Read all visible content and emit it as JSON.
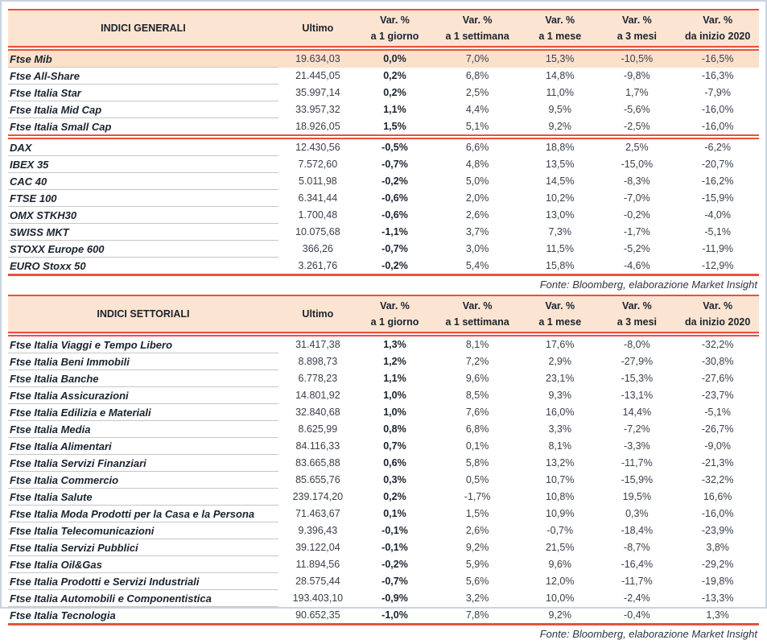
{
  "colors": {
    "accent": "#e8513c",
    "header_bg": "#fce4d2",
    "highlight_bg": "#fbe0ca",
    "text_dark": "#1a232e"
  },
  "tables": [
    {
      "title": "INDICI GENERALI",
      "ultimo_label": "Ultimo",
      "var_headers": [
        {
          "line1": "Var. %",
          "line2": "a 1 giorno"
        },
        {
          "line1": "Var. %",
          "line2": "a 1 settimana"
        },
        {
          "line1": "Var. %",
          "line2": "a 1 mese"
        },
        {
          "line1": "Var. %",
          "line2": "a 3 mesi"
        },
        {
          "line1": "Var. %",
          "line2": "da inizio 2020"
        }
      ],
      "rows": [
        {
          "name": "Ftse Mib",
          "ultimo": "19.634,03",
          "vars": [
            "0,0%",
            "7,0%",
            "15,3%",
            "-10,5%",
            "-16,5%"
          ],
          "highlight": true
        },
        {
          "name": "Ftse All-Share",
          "ultimo": "21.445,05",
          "vars": [
            "0,2%",
            "6,8%",
            "14,8%",
            "-9,8%",
            "-16,3%"
          ]
        },
        {
          "name": "Ftse Italia Star",
          "ultimo": "35.997,14",
          "vars": [
            "0,2%",
            "2,5%",
            "11,0%",
            "1,7%",
            "-7,9%"
          ]
        },
        {
          "name": "Ftse Italia Mid Cap",
          "ultimo": "33.957,32",
          "vars": [
            "1,1%",
            "4,4%",
            "9,5%",
            "-5,6%",
            "-16,0%"
          ]
        },
        {
          "name": "Ftse Italia Small Cap",
          "ultimo": "18.926,05",
          "vars": [
            "1,5%",
            "5,1%",
            "9,2%",
            "-2,5%",
            "-16,0%"
          ],
          "section_end": true
        },
        {
          "name": "DAX",
          "ultimo": "12.430,56",
          "vars": [
            "-0,5%",
            "6,6%",
            "18,8%",
            "2,5%",
            "-6,2%"
          ]
        },
        {
          "name": "IBEX 35",
          "ultimo": "7.572,60",
          "vars": [
            "-0,7%",
            "4,8%",
            "13,5%",
            "-15,0%",
            "-20,7%"
          ]
        },
        {
          "name": "CAC 40",
          "ultimo": "5.011,98",
          "vars": [
            "-0,2%",
            "5,0%",
            "14,5%",
            "-8,3%",
            "-16,2%"
          ]
        },
        {
          "name": "FTSE 100",
          "ultimo": "6.341,44",
          "vars": [
            "-0,6%",
            "2,0%",
            "10,2%",
            "-7,0%",
            "-15,9%"
          ]
        },
        {
          "name": "OMX STKH30",
          "ultimo": "1.700,48",
          "vars": [
            "-0,6%",
            "2,6%",
            "13,0%",
            "-0,2%",
            "-4,0%"
          ]
        },
        {
          "name": "SWISS MKT",
          "ultimo": "10.075,68",
          "vars": [
            "-1,1%",
            "3,7%",
            "7,3%",
            "-1,7%",
            "-5,1%"
          ]
        },
        {
          "name": "STOXX Europe 600",
          "ultimo": "366,26",
          "vars": [
            "-0,7%",
            "3,0%",
            "11,5%",
            "-5,2%",
            "-11,9%"
          ]
        },
        {
          "name": "EURO Stoxx 50",
          "ultimo": "3.261,76",
          "vars": [
            "-0,2%",
            "5,4%",
            "15,8%",
            "-4,6%",
            "-12,9%"
          ],
          "table_end": true
        }
      ],
      "source": "Fonte: Bloomberg, elaborazione Market Insight"
    },
    {
      "title": "INDICI SETTORIALI",
      "ultimo_label": "Ultimo",
      "var_headers": [
        {
          "line1": "Var. %",
          "line2": "a 1 giorno"
        },
        {
          "line1": "Var. %",
          "line2": "a 1 settimana"
        },
        {
          "line1": "Var. %",
          "line2": "a 1 mese"
        },
        {
          "line1": "Var. %",
          "line2": "a 3 mesi"
        },
        {
          "line1": "Var. %",
          "line2": "da inizio 2020"
        }
      ],
      "rows": [
        {
          "name": "Ftse Italia Viaggi e Tempo Libero",
          "ultimo": "31.417,38",
          "vars": [
            "1,3%",
            "8,1%",
            "17,6%",
            "-8,0%",
            "-32,2%"
          ]
        },
        {
          "name": "Ftse Italia Beni Immobili",
          "ultimo": "8.898,73",
          "vars": [
            "1,2%",
            "7,2%",
            "2,9%",
            "-27,9%",
            "-30,8%"
          ]
        },
        {
          "name": "Ftse Italia Banche",
          "ultimo": "6.778,23",
          "vars": [
            "1,1%",
            "9,6%",
            "23,1%",
            "-15,3%",
            "-27,6%"
          ]
        },
        {
          "name": "Ftse Italia Assicurazioni",
          "ultimo": "14.801,92",
          "vars": [
            "1,0%",
            "8,5%",
            "9,3%",
            "-13,1%",
            "-23,7%"
          ]
        },
        {
          "name": "Ftse Italia Edilizia e Materiali",
          "ultimo": "32.840,68",
          "vars": [
            "1,0%",
            "7,6%",
            "16,0%",
            "14,4%",
            "-5,1%"
          ]
        },
        {
          "name": "Ftse Italia Media",
          "ultimo": "8.625,99",
          "vars": [
            "0,8%",
            "6,8%",
            "3,3%",
            "-7,2%",
            "-26,7%"
          ]
        },
        {
          "name": "Ftse Italia Alimentari",
          "ultimo": "84.116,33",
          "vars": [
            "0,7%",
            "0,1%",
            "8,1%",
            "-3,3%",
            "-9,0%"
          ]
        },
        {
          "name": "Ftse Italia Servizi Finanziari",
          "ultimo": "83.665,88",
          "vars": [
            "0,6%",
            "5,8%",
            "13,2%",
            "-11,7%",
            "-21,3%"
          ]
        },
        {
          "name": "Ftse Italia Commercio",
          "ultimo": "85.655,76",
          "vars": [
            "0,3%",
            "0,5%",
            "10,7%",
            "-15,9%",
            "-32,2%"
          ]
        },
        {
          "name": "Ftse Italia Salute",
          "ultimo": "239.174,20",
          "vars": [
            "0,2%",
            "-1,7%",
            "10,8%",
            "19,5%",
            "16,6%"
          ]
        },
        {
          "name": "Ftse Italia Moda Prodotti per la Casa e la Persona",
          "ultimo": "71.463,67",
          "vars": [
            "0,1%",
            "1,5%",
            "10,9%",
            "0,3%",
            "-16,0%"
          ]
        },
        {
          "name": "Ftse Italia Telecomunicazioni",
          "ultimo": "9.396,43",
          "vars": [
            "-0,1%",
            "2,6%",
            "-0,7%",
            "-18,4%",
            "-23,9%"
          ]
        },
        {
          "name": "Ftse Italia Servizi Pubblici",
          "ultimo": "39.122,04",
          "vars": [
            "-0,1%",
            "9,2%",
            "21,5%",
            "-8,7%",
            "3,8%"
          ]
        },
        {
          "name": "Ftse Italia Oil&Gas",
          "ultimo": "11.894,56",
          "vars": [
            "-0,2%",
            "5,9%",
            "9,6%",
            "-16,4%",
            "-29,2%"
          ]
        },
        {
          "name": "Ftse Italia Prodotti e Servizi Industriali",
          "ultimo": "28.575,44",
          "vars": [
            "-0,7%",
            "5,6%",
            "12,0%",
            "-11,7%",
            "-19,8%"
          ]
        },
        {
          "name": "Ftse Italia Automobili e Componentistica",
          "ultimo": "193.403,10",
          "vars": [
            "-0,9%",
            "3,2%",
            "10,0%",
            "-2,4%",
            "-13,3%"
          ]
        },
        {
          "name": "Ftse Italia Tecnologia",
          "ultimo": "90.652,35",
          "vars": [
            "-1,0%",
            "7,8%",
            "9,2%",
            "-0,4%",
            "1,3%"
          ],
          "table_end": true
        }
      ],
      "source": "Fonte: Bloomberg, elaborazione Market Insight"
    }
  ]
}
